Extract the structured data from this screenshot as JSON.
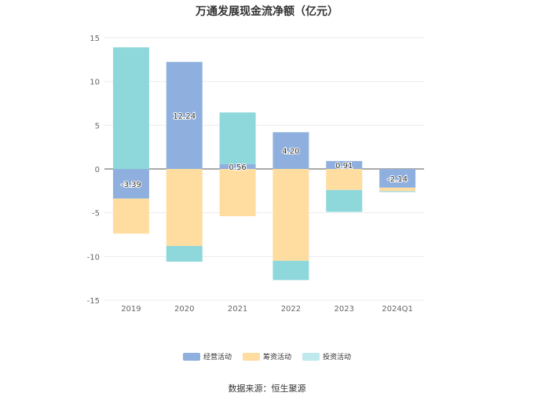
{
  "chart_data": {
    "type": "bar",
    "stacked": true,
    "title": "万通发展现金流净额（亿元）",
    "categories": [
      "2019",
      "2020",
      "2021",
      "2022",
      "2023",
      "2024Q1"
    ],
    "series": [
      {
        "name": "经营活动",
        "color": "#8FB0DE",
        "values": [
          -3.39,
          12.24,
          0.56,
          4.2,
          0.91,
          -2.14
        ]
      },
      {
        "name": "筹资活动",
        "color": "#FFDDA1",
        "values": [
          -4.0,
          -8.8,
          -5.4,
          -10.5,
          -2.4,
          -0.4
        ]
      },
      {
        "name": "投资活动",
        "color": "#8ED8DB",
        "values": [
          13.9,
          -1.8,
          5.9,
          -2.2,
          -2.5,
          -0.1
        ]
      }
    ],
    "data_labels": [
      "-3.39",
      "12.24",
      "0.56",
      "4.20",
      "0.91",
      "-2.14"
    ],
    "ylim": [
      -15,
      15
    ],
    "yticks": [
      15,
      10,
      5,
      0,
      -5,
      -10,
      -15
    ],
    "grid": true,
    "legend_position": "bottom"
  },
  "legend_labels": [
    "经营活动",
    "筹资活动",
    "投资活动"
  ],
  "source": "数据来源：恒生聚源"
}
